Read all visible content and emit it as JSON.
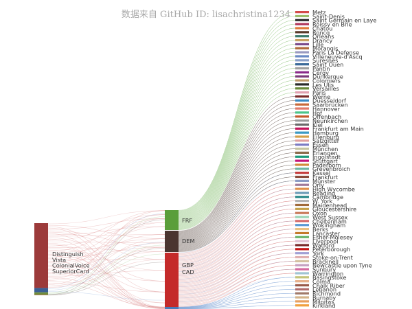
{
  "title": "数据来自 GitHub ID: lisachristina1234",
  "colors": {
    "distinguish": "#9c3a3a",
    "vista": "#3a5f94",
    "colonialvoice": "#6e8c3c",
    "superiorcard": "#a07a48",
    "frf": "#5a9e3a",
    "dem": "#4a3530",
    "gbp": "#c42a2a",
    "cad": "#4a7ab8",
    "link_green": "#8fc47a",
    "link_dark": "#6a5a55",
    "link_red": "#d77a7a",
    "link_blue": "#7aa0d4"
  },
  "nodes_left": [
    {
      "name": "Distinguish",
      "color": "#9c3a3a",
      "weight": 89
    },
    {
      "name": "Vista",
      "color": "#3a5f94",
      "weight": 6
    },
    {
      "name": "ColonialVoice",
      "color": "#6e8c3c",
      "weight": 3
    },
    {
      "name": "SuperiorCard",
      "color": "#a07a48",
      "weight": 1
    }
  ],
  "nodes_mid": [
    {
      "name": "FRF",
      "color": "#5a9e3a",
      "weight": 20
    },
    {
      "name": "DEM",
      "color": "#4a3530",
      "weight": 23
    },
    {
      "name": "GBP",
      "color": "#c42a2a",
      "weight": 57
    },
    {
      "name": "CAD",
      "color": "#4a7ab8",
      "weight": 2
    }
  ],
  "nodes_right": [
    "Metz",
    "Saint-Denis",
    "Saint Germain en Laye",
    "Roissy en Brie",
    "Chatou",
    "Roncq",
    "Orleans",
    "Drancy",
    "Lille",
    "Morangis",
    "Paris La Defense",
    "Villeneuve-d'Ascq",
    "Suresnes",
    "Saint Ouen",
    "Pantin",
    "Cergy",
    "Dunkerque",
    "Colomiers",
    "Les Ulis",
    "Versailles",
    "Paris",
    "Werne",
    "Duesseldorf",
    "Saarbrücken",
    "Hannover",
    "Hof",
    "Offenbach",
    "Neunkirchen",
    "Kiel",
    "Frankfurt am Main",
    "Hamburg",
    "Eilenburg",
    "Salzgitter",
    "Essen",
    "München",
    "Erlangen",
    "Ingolstadt",
    "Stuttgart",
    "Paderborn",
    "Grevenbroich",
    "Kassel",
    "Frankfurt",
    "Münster",
    "Orly",
    "High Wycombe",
    "Reading",
    "Cambridge",
    "W. York",
    "Maidenhead",
    "Gloucestershire",
    "Oxon",
    "West Sussex",
    "Cheltenham",
    "Wokingham",
    "Berks",
    "Lancaster",
    "Esher-Molesey",
    "Liverpool",
    "Watford",
    "Peterborough",
    "York",
    "Stoke-on-Trent",
    "Bracknell",
    "Newcastle upon Tyne",
    "Sunbury",
    "Warrington",
    "Basingstoke",
    "Colma",
    "Chalk Riber",
    "Lebanon",
    "Richmond",
    "Burnaby",
    "Milpitas",
    "Kirkland"
  ]
}
